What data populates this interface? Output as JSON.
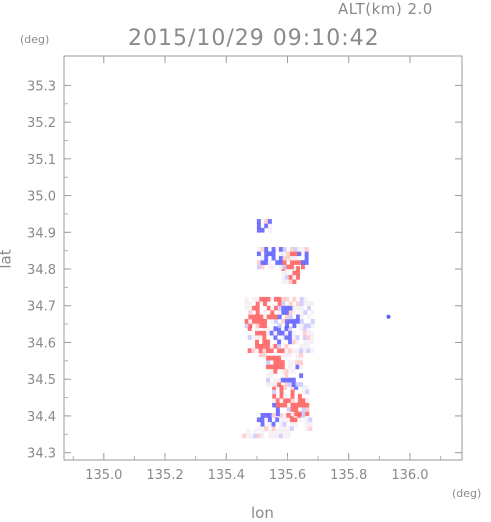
{
  "header": {
    "altitude_label": "ALT(km) 2.0",
    "timestamp": "2015/10/29 09:10:42"
  },
  "chart_data": {
    "type": "heatmap",
    "title": "2015/10/29 09:10:42",
    "subtitle": "ALT(km) 2.0",
    "xlabel": "lon",
    "ylabel": "lat",
    "xunit": "(deg)",
    "yunit": "(deg)",
    "xlim": [
      134.87,
      136.17
    ],
    "ylim": [
      34.28,
      35.38
    ],
    "xticks": [
      "135.0",
      "135.2",
      "135.4",
      "135.6",
      "135.8",
      "136.0"
    ],
    "yticks": [
      "34.3",
      "34.4",
      "34.5",
      "34.6",
      "34.7",
      "34.8",
      "34.9",
      "35.0",
      "35.1",
      "35.2",
      "35.3"
    ],
    "grid": false,
    "colors": {
      "positive": "#ff5a5a",
      "negative": "#5a5aff",
      "neutral": "#f4eef4"
    },
    "echo_regions": [
      {
        "lon": 135.52,
        "lat": 34.92,
        "sign": -1
      },
      {
        "lon": 135.54,
        "lat": 34.83,
        "sign": -1
      },
      {
        "lon": 135.62,
        "lat": 34.8,
        "sign": 1
      },
      {
        "lon": 135.66,
        "lat": 34.82,
        "sign": -1
      },
      {
        "lon": 135.49,
        "lat": 34.66,
        "sign": 1
      },
      {
        "lon": 135.54,
        "lat": 34.69,
        "sign": 1
      },
      {
        "lon": 135.57,
        "lat": 34.62,
        "sign": -1
      },
      {
        "lon": 135.5,
        "lat": 34.6,
        "sign": 1
      },
      {
        "lon": 135.6,
        "lat": 34.66,
        "sign": -1
      },
      {
        "lon": 135.55,
        "lat": 34.55,
        "sign": 1
      },
      {
        "lon": 135.61,
        "lat": 34.5,
        "sign": -1
      },
      {
        "lon": 135.58,
        "lat": 34.44,
        "sign": 1
      },
      {
        "lon": 135.62,
        "lat": 34.42,
        "sign": 1
      },
      {
        "lon": 135.54,
        "lat": 34.4,
        "sign": -1
      },
      {
        "lon": 135.47,
        "lat": 34.49,
        "sign": 1
      },
      {
        "lon": 135.93,
        "lat": 34.67,
        "sign": -1
      }
    ]
  }
}
